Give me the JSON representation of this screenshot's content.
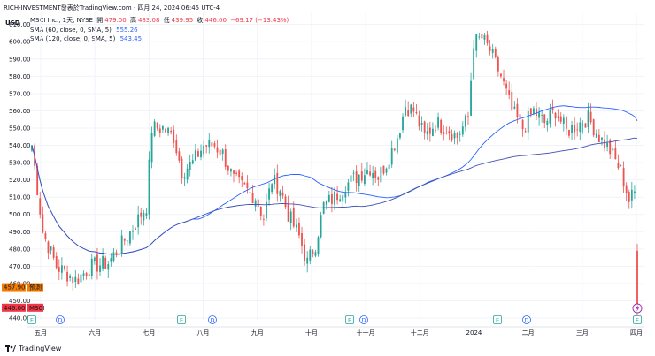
{
  "header": {
    "source_line": "RICH-INVESTMENT發表於TradingView.com · 四月 24, 2024 06:45 UTC-4"
  },
  "legend": {
    "symbol_line": "MSCI Inc., 1天, NYSE",
    "open_label": "開",
    "open": "479.00",
    "high_label": "高",
    "high": "483.08",
    "low_label": "低",
    "low": "439.95",
    "close_label": "收",
    "close": "446.00",
    "change": "−69.17 (−13.43%)",
    "sma1_label": "SMA (60, close, 0, SMA, 5)",
    "sma1_value": "555.26",
    "sma2_label": "SMA (120, close, 0, SMA, 5)",
    "sma2_value": "543.45"
  },
  "axis": {
    "currency": "USD"
  },
  "price_tags": [
    {
      "value": "457.90",
      "label": "預測",
      "color": "#f57c00"
    },
    {
      "value": "446.00",
      "label": "MSCI",
      "color": "#f23645"
    }
  ],
  "event_markers": [
    {
      "kind": "E",
      "color": "#26a69a"
    },
    {
      "kind": "D",
      "color": "#2962ff"
    }
  ],
  "footer": {
    "brand": "TradingView"
  },
  "colors": {
    "up": "#26a69a",
    "down": "#ef5350",
    "sma60": "#2962ff",
    "sma120": "#3f51b5",
    "grid": "#f0f3fa"
  },
  "chart_data": {
    "type": "candlestick",
    "y_ticks": [
      440,
      450,
      460,
      470,
      480,
      490,
      500,
      510,
      520,
      530,
      540,
      550,
      560,
      570,
      580,
      590,
      600,
      610
    ],
    "ylim": [
      439,
      617
    ],
    "x_labels": [
      "五月",
      "六月",
      "七月",
      "八月",
      "九月",
      "十月",
      "十一月",
      "十二月",
      "2024",
      "二月",
      "三月",
      "四月"
    ],
    "events": [
      "E",
      "D",
      "E",
      "D",
      "E",
      "D",
      "E",
      "D",
      "E"
    ],
    "price_path": [
      [
        0,
        540
      ],
      [
        4,
        490
      ],
      [
        9,
        470
      ],
      [
        16,
        462
      ],
      [
        22,
        470
      ],
      [
        28,
        472
      ],
      [
        33,
        483
      ],
      [
        37,
        492
      ],
      [
        40,
        500
      ],
      [
        42,
        505
      ],
      [
        44,
        550
      ],
      [
        48,
        550
      ],
      [
        52,
        545
      ],
      [
        55,
        525
      ],
      [
        59,
        530
      ],
      [
        63,
        540
      ],
      [
        67,
        540
      ],
      [
        70,
        535
      ],
      [
        74,
        520
      ],
      [
        78,
        515
      ],
      [
        82,
        510
      ],
      [
        85,
        498
      ],
      [
        88,
        520
      ],
      [
        91,
        515
      ],
      [
        94,
        500
      ],
      [
        98,
        487
      ],
      [
        101,
        472
      ],
      [
        104,
        483
      ],
      [
        107,
        505
      ],
      [
        111,
        510
      ],
      [
        115,
        517
      ],
      [
        120,
        523
      ],
      [
        124,
        527
      ],
      [
        127,
        522
      ],
      [
        130,
        530
      ],
      [
        134,
        545
      ],
      [
        137,
        563
      ],
      [
        140,
        560
      ],
      [
        144,
        545
      ],
      [
        148,
        553
      ],
      [
        152,
        550
      ],
      [
        156,
        545
      ],
      [
        160,
        556
      ],
      [
        162,
        600
      ],
      [
        165,
        602
      ],
      [
        168,
        595
      ],
      [
        172,
        580
      ],
      [
        176,
        560
      ],
      [
        180,
        550
      ],
      [
        184,
        560
      ],
      [
        188,
        553
      ],
      [
        192,
        560
      ],
      [
        196,
        548
      ],
      [
        200,
        552
      ],
      [
        204,
        556
      ],
      [
        208,
        545
      ],
      [
        212,
        537
      ],
      [
        216,
        525
      ],
      [
        219,
        508
      ],
      [
        222,
        515
      ]
    ],
    "last_bar": {
      "open": 479.0,
      "high": 483.08,
      "low": 439.95,
      "close": 446.0
    },
    "series": [
      {
        "name": "SMA (60, close, 0, SMA, 5)",
        "last": 555.26
      },
      {
        "name": "SMA (120, close, 0, SMA, 5)",
        "last": 543.45
      }
    ]
  }
}
